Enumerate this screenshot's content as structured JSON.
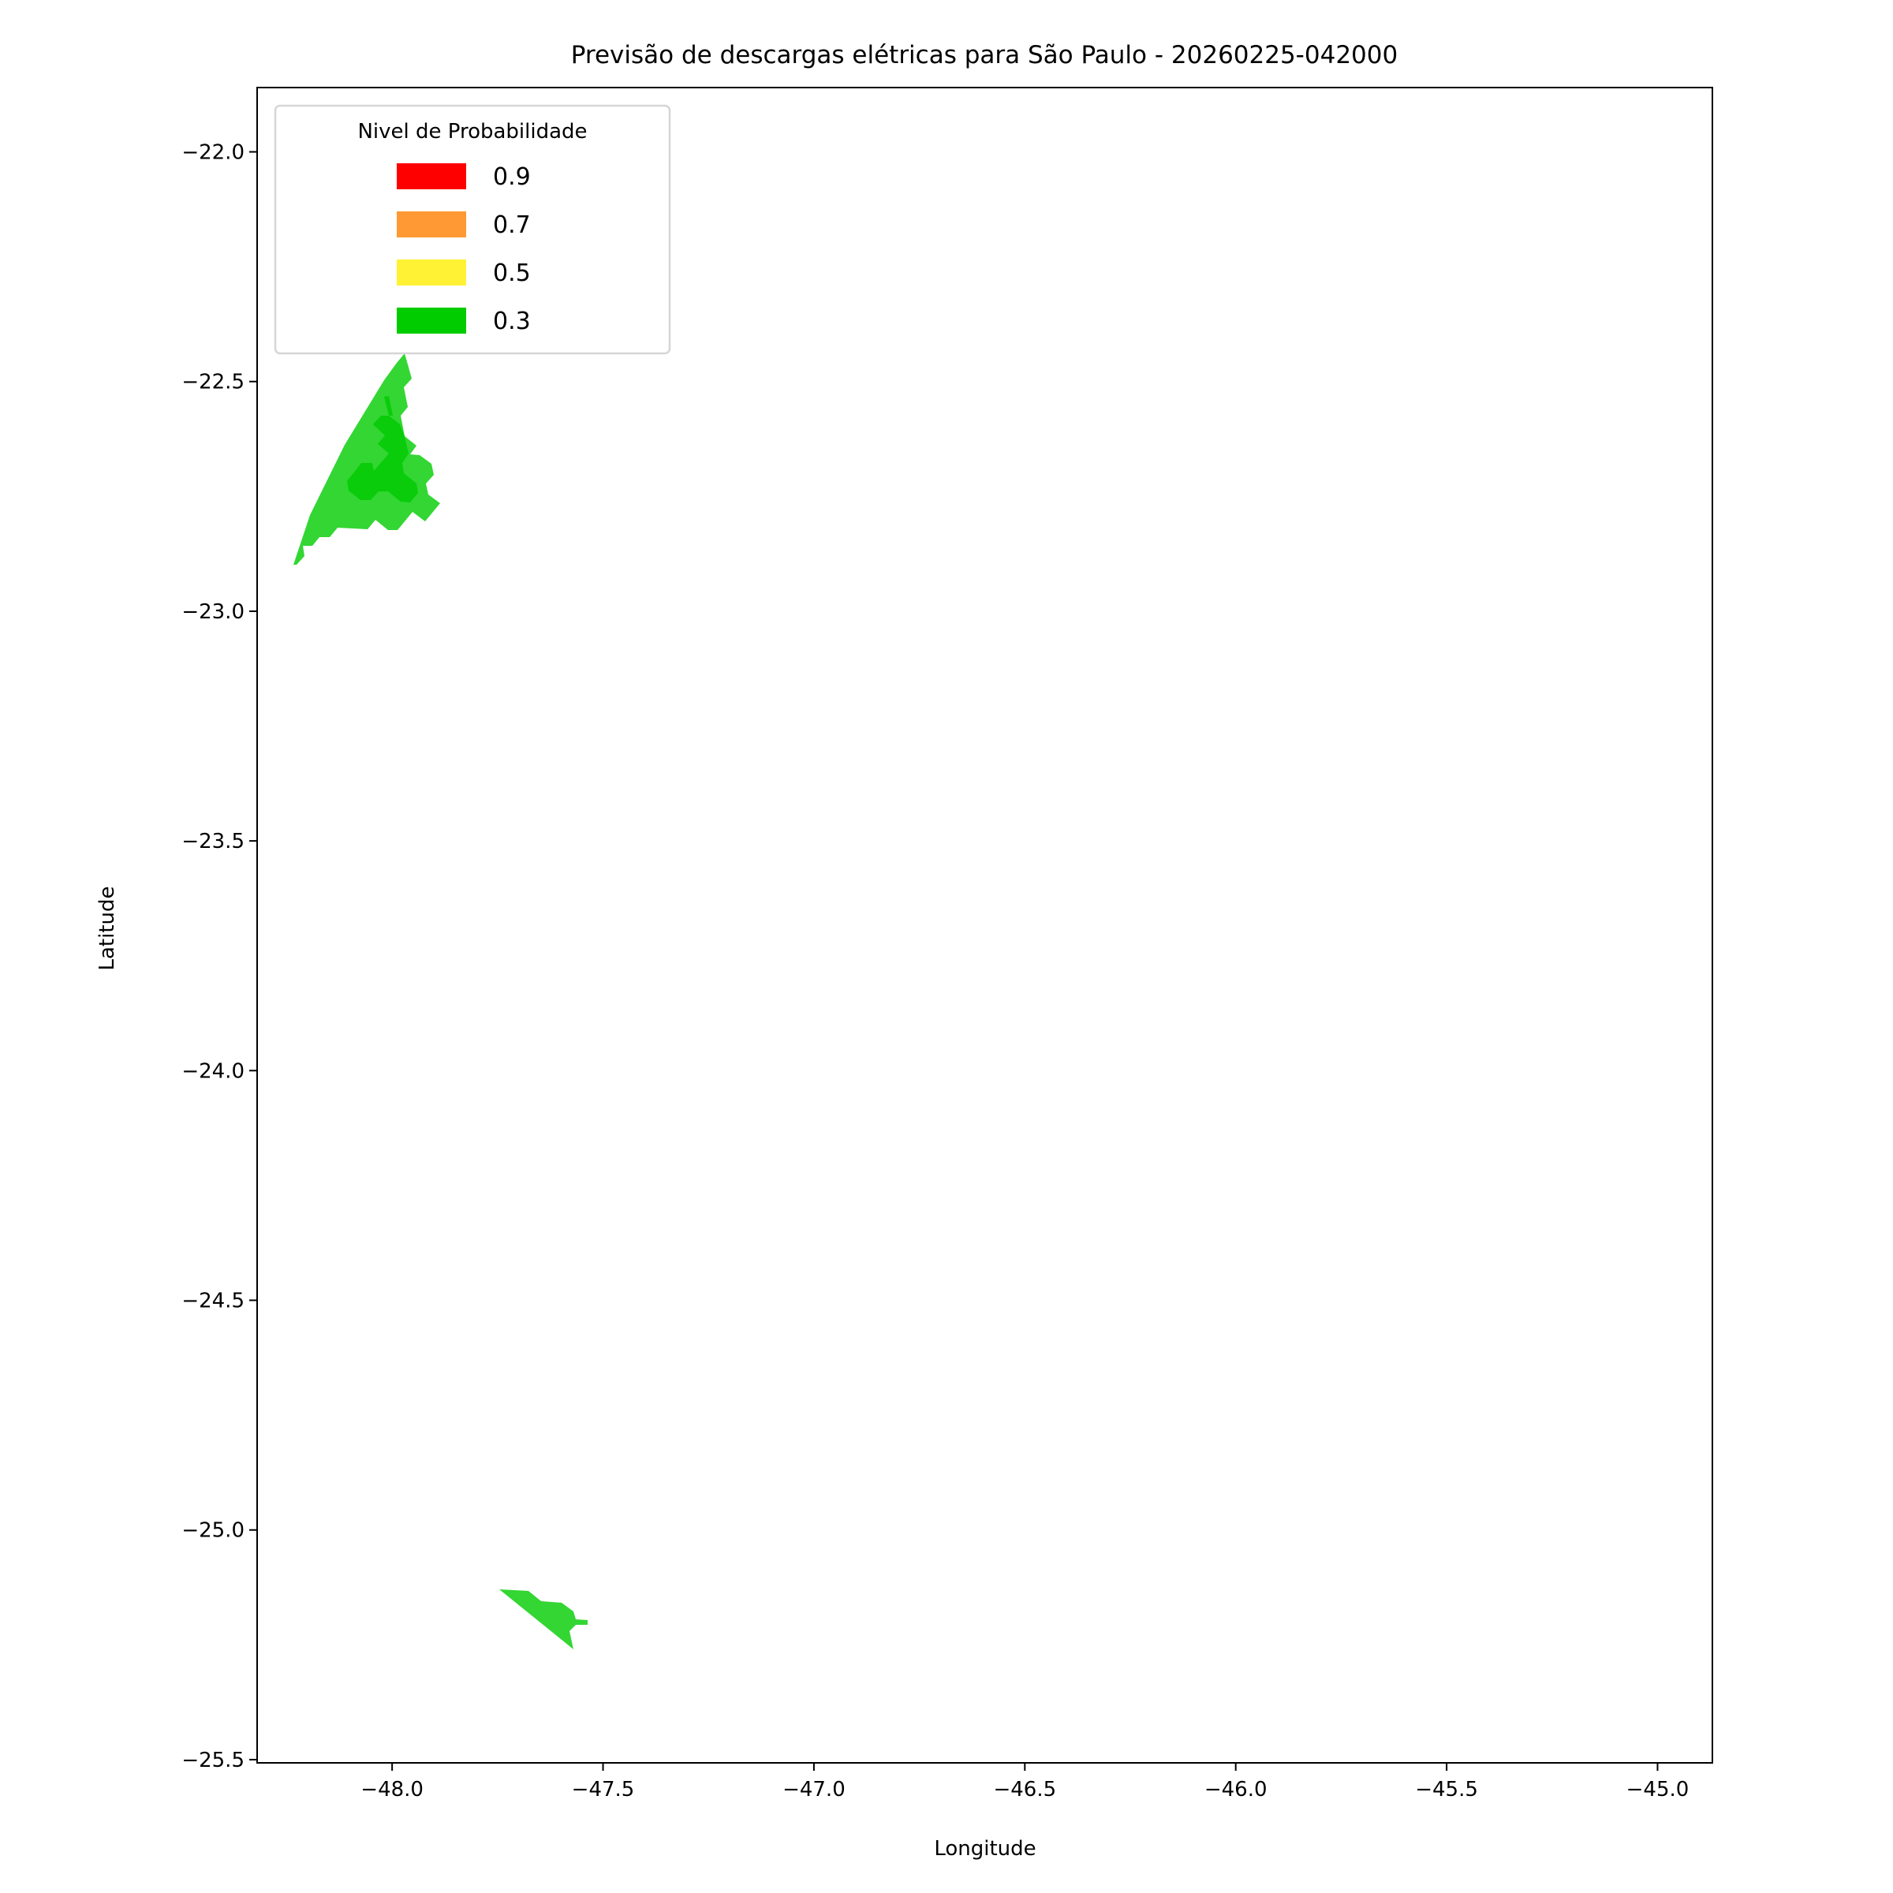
{
  "chart_data": {
    "type": "filled-contour map",
    "title": "Previsão de descargas elétricas para São Paulo - 20260225-042000",
    "xlabel": "Longitude",
    "ylabel": "Latitude",
    "xlim": [
      -48.32,
      -44.87
    ],
    "ylim": [
      -25.507,
      -21.86
    ],
    "xticks": [
      -48.0,
      -47.5,
      -47.0,
      -46.5,
      -46.0,
      -45.5,
      -45.0
    ],
    "xtick_labels": [
      "−48.0",
      "−47.5",
      "−47.0",
      "−46.5",
      "−46.0",
      "−45.5",
      "−45.0"
    ],
    "yticks": [
      -22.0,
      -22.5,
      -23.0,
      -23.5,
      -24.0,
      -24.5,
      -25.0,
      -25.5
    ],
    "ytick_labels": [
      "−22.0",
      "−22.5",
      "−23.0",
      "−23.5",
      "−24.0",
      "−24.5",
      "−25.0",
      "−25.5"
    ],
    "grid": false,
    "legend": {
      "title": "Nivel de Probabilidade",
      "placement": "top-left",
      "entries": [
        {
          "label": "0.9",
          "color": "#ff0000"
        },
        {
          "label": "0.7",
          "color": "#ff9933"
        },
        {
          "label": "0.5",
          "color": "#fff235"
        },
        {
          "label": "0.3",
          "color": "#00cc00"
        }
      ]
    },
    "regions": [
      {
        "area": "northwest, near -48.0 / -22.7",
        "levels_present": [
          "0.3"
        ],
        "fill_colors": [
          "#33d633",
          "#0acc0a"
        ]
      },
      {
        "area": "south, near -47.65 / -25.2",
        "levels_present": [
          "0.3"
        ],
        "fill_colors": [
          "#33d633"
        ]
      }
    ]
  }
}
